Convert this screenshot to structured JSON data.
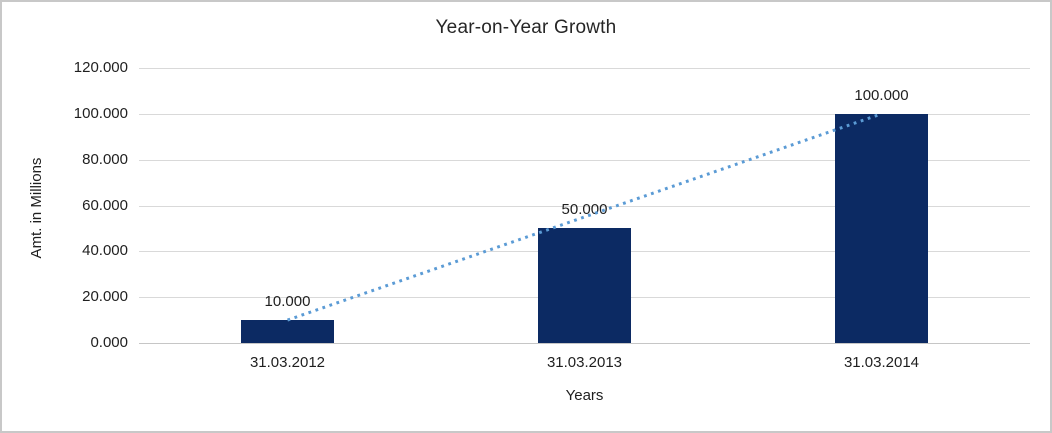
{
  "window": {
    "background": "#ffffff",
    "border_color": "#c8c8c8"
  },
  "chart_data": {
    "type": "bar",
    "title": "Year-on-Year Growth",
    "xlabel": "Years",
    "ylabel": "Amt. in Millions",
    "categories": [
      "31.03.2012",
      "31.03.2013",
      "31.03.2014"
    ],
    "series": [
      {
        "name": "Year-on-Year Growth",
        "type": "bar",
        "values": [
          10000,
          50000,
          100000
        ],
        "data_labels": [
          "10.000",
          "50.000",
          "100.000"
        ],
        "color": "#0c2a63"
      }
    ],
    "trendline": {
      "style": "dotted",
      "color": "#5b9bd5",
      "from": {
        "category": "31.03.2012",
        "value": 10000
      },
      "to": {
        "category": "31.03.2014",
        "value": 100000
      }
    },
    "ylim": [
      0,
      120000
    ],
    "ytick_step": 20000,
    "ytick_labels": [
      "0.000",
      "20.000",
      "40.000",
      "60.000",
      "80.000",
      "100.000",
      "120.000"
    ],
    "grid": "horizontal",
    "gridline_color": "#d9d9d9",
    "axis_line_color": "#c6c6c6",
    "text_color": "#1f1f1f",
    "legend": "none"
  }
}
